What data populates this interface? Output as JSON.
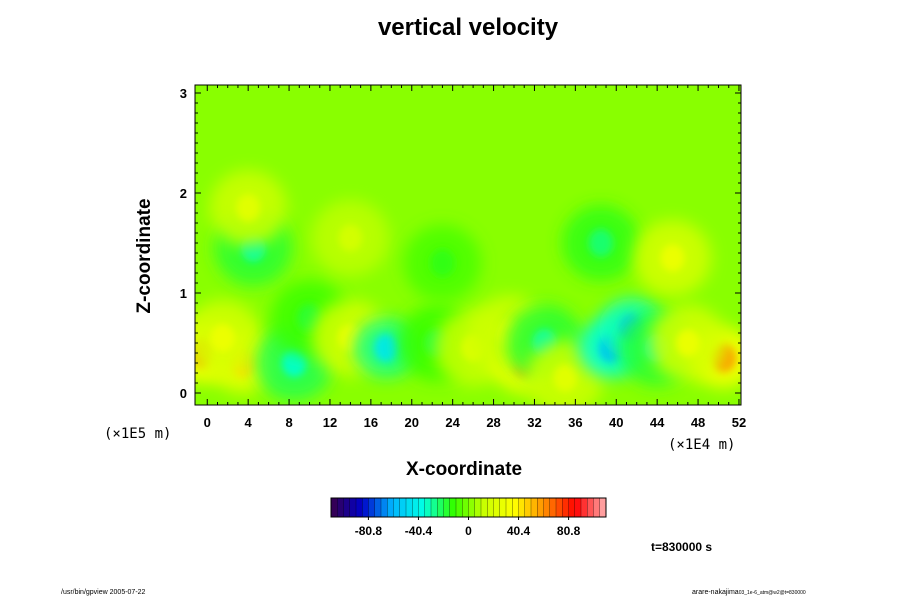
{
  "chart_data": {
    "type": "heatmap",
    "title": "vertical velocity",
    "xlabel": "X-coordinate",
    "ylabel": "Z-coordinate",
    "x_scale_label": "(×1E4 m)",
    "y_scale_label": "(×1E5 m)",
    "x_ticks": [
      "0",
      "4",
      "8",
      "12",
      "16",
      "20",
      "24",
      "28",
      "32",
      "36",
      "40",
      "44",
      "48",
      "52"
    ],
    "y_ticks": [
      "0",
      "1",
      "2",
      "3"
    ],
    "xlim": [
      -1.2,
      52.2
    ],
    "ylim": [
      -0.12,
      3.08
    ],
    "colorbar": {
      "ticks": [
        "-80.8",
        "-40.4",
        "0",
        "40.4",
        "80.8"
      ],
      "tick_values": [
        -80.8,
        -40.4,
        0,
        40.4,
        80.8
      ],
      "range": [
        -111,
        111
      ],
      "colormap": [
        "#3a004a",
        "#0000c8",
        "#00b4ff",
        "#00ffe6",
        "#32ff00",
        "#c8ff00",
        "#ffff00",
        "#ff8c00",
        "#ff0000",
        "#ffb0b0"
      ]
    },
    "background_value": 2,
    "features": [
      {
        "x": -0.5,
        "z": 0.4,
        "value": 60,
        "kind": "up"
      },
      {
        "x": 3.5,
        "z": 0.3,
        "value": 45,
        "kind": "up"
      },
      {
        "x": 1.5,
        "z": 0.55,
        "value": 30,
        "kind": "up"
      },
      {
        "x": 8.5,
        "z": 0.3,
        "value": -35,
        "kind": "down"
      },
      {
        "x": 10,
        "z": 0.75,
        "value": -18,
        "kind": "down"
      },
      {
        "x": 14,
        "z": 0.55,
        "value": 30,
        "kind": "up"
      },
      {
        "x": 17.5,
        "z": 0.45,
        "value": -45,
        "kind": "down"
      },
      {
        "x": 22.5,
        "z": 0.5,
        "value": -20,
        "kind": "down"
      },
      {
        "x": 26,
        "z": 0.45,
        "value": 22,
        "kind": "up"
      },
      {
        "x": 31,
        "z": 0.3,
        "value": 55,
        "kind": "up"
      },
      {
        "x": 29.5,
        "z": 0.6,
        "value": 25,
        "kind": "up"
      },
      {
        "x": 33,
        "z": 0.5,
        "value": -30,
        "kind": "down"
      },
      {
        "x": 35,
        "z": 0.15,
        "value": 25,
        "kind": "up"
      },
      {
        "x": 39.5,
        "z": 0.45,
        "value": -60,
        "kind": "down"
      },
      {
        "x": 41.5,
        "z": 0.65,
        "value": -55,
        "kind": "down"
      },
      {
        "x": 44,
        "z": 0.45,
        "value": -30,
        "kind": "down"
      },
      {
        "x": 50.5,
        "z": 0.35,
        "value": 60,
        "kind": "up"
      },
      {
        "x": 47,
        "z": 0.5,
        "value": 30,
        "kind": "up"
      },
      {
        "x": 4.5,
        "z": 1.45,
        "value": -30,
        "kind": "down"
      },
      {
        "x": 4,
        "z": 1.85,
        "value": 25,
        "kind": "up"
      },
      {
        "x": 38.5,
        "z": 1.5,
        "value": -25,
        "kind": "down"
      },
      {
        "x": 45.5,
        "z": 1.35,
        "value": 30,
        "kind": "up"
      },
      {
        "x": 14,
        "z": 1.55,
        "value": 18,
        "kind": "up"
      },
      {
        "x": 23,
        "z": 1.3,
        "value": -15,
        "kind": "down"
      }
    ],
    "time_label": "t=830000 s"
  },
  "footer": {
    "left": "/usr/bin/gpview 2005-07-22",
    "right_main": "arare-nakajima",
    "right_small": "03_1e-6_atm@w2@t=830000"
  }
}
